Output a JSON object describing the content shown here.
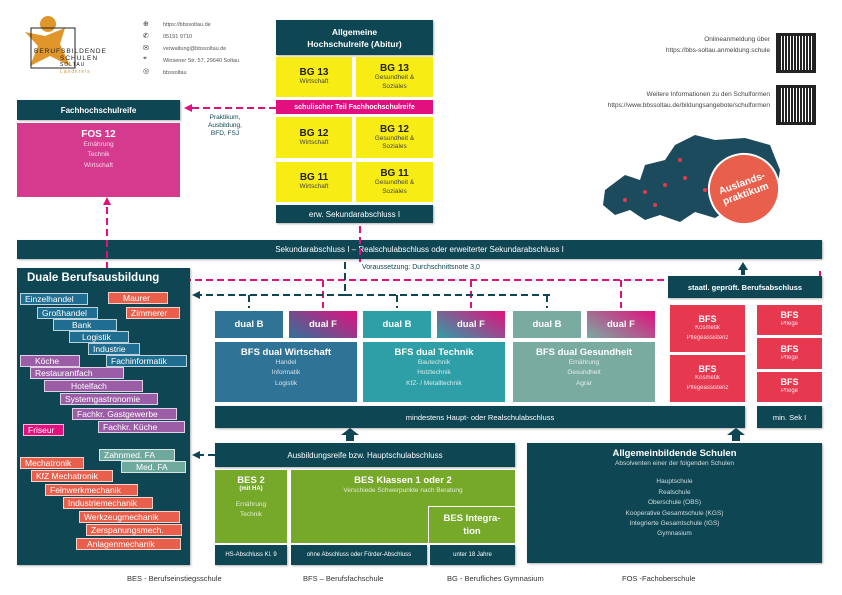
{
  "logo": {
    "line1": "BERUFSBILDENDE",
    "line2": "SCHULEN",
    "line3": "SOLTAU",
    "line4": "Landkreis"
  },
  "contact": [
    {
      "icon": "globe-icon",
      "text": "https://bbssoltau.de"
    },
    {
      "icon": "phone-icon",
      "text": "05191 9710"
    },
    {
      "icon": "mail-icon",
      "text": "verwaltung@bbssoltau.de"
    },
    {
      "icon": "location-icon",
      "text": "Winsener Str. 57, 29640 Soltau"
    },
    {
      "icon": "instagram-icon",
      "text": "bbssoltau"
    }
  ],
  "online": {
    "line1": "Onlineanmeldung über",
    "line2": "https://bbs-soltau.anmeldung.schule"
  },
  "info": {
    "line1": "Weitere Informationen zu den Schulformen",
    "line2": "https://www.bbssoltau.de/bildungsangebote/schulformen"
  },
  "badge": {
    "line1": "Auslands-",
    "line2": "praktikum"
  },
  "abitur": {
    "title1": "Allgemeine",
    "title2": "Hochschulreife (Abitur)",
    "fhr_bar": "schulischer Teil Fachhochschulreife",
    "bottom": "erw. Sekundarabschluss I",
    "rows": [
      {
        "left": {
          "title": "BG 13",
          "sub": "Wirtschaft"
        },
        "right": {
          "title": "BG 13",
          "sub": "Gesundheit & Soziales"
        }
      },
      {
        "left": {
          "title": "BG 12",
          "sub": "Wirtschaft"
        },
        "right": {
          "title": "BG 12",
          "sub": "Gesundheit & Soziales"
        }
      },
      {
        "left": {
          "title": "BG 11",
          "sub": "Wirtschaft"
        },
        "right": {
          "title": "BG 11",
          "sub": "Gesundheit & Soziales"
        }
      }
    ]
  },
  "fhr": {
    "title": "Fachhochschulreife",
    "fos_title": "FOS 12",
    "fos_items": [
      "Ernährung",
      "Technik",
      "Wirtschaft"
    ],
    "praktikum": [
      "Praktikum,",
      "Ausbildung,",
      "BFD, FSJ"
    ]
  },
  "sek_bar": "Sekundarabschluss I – Realschulabschluss oder erweiterter Sekundarabschluss I",
  "voraussetzung": "Voraussetzung: Durchschnittsnote 3,0",
  "duale": {
    "title": "Duale Berufsausbildung",
    "trades": [
      "Einzelhandel",
      "Großhandel",
      "Bank",
      "Logistik",
      "Industrie",
      "Fachinformatik",
      "Maurer",
      "Zimmerer",
      "Köche",
      "Restaurantfach",
      "Hotelfach",
      "Systemgastronomie",
      "Fachkr. Gastgewerbe",
      "Fachkr. Küche",
      "Friseur",
      "Zahnmed. FA",
      "Med. FA",
      "Mechatronik",
      "KfZ Mechatronik",
      "Feinwerkmechanik",
      "Industriemechanik",
      "Werkzeugmechanik",
      "Zerspanungsmech.",
      "Anlagenmechanik"
    ]
  },
  "dual": {
    "b": "dual B",
    "f": "dual F",
    "groups": [
      {
        "title": "BFS dual Wirtschaft",
        "items": [
          "Handel",
          "Informatik",
          "Logistik"
        ]
      },
      {
        "title": "BFS dual Technik",
        "items": [
          "Bautechnik",
          "Holztechnik",
          "KfZ- / Metalltechnik"
        ]
      },
      {
        "title": "BFS dual Gesundheit",
        "items": [
          "Ernährung",
          "Gesundheit",
          "Agrar"
        ]
      }
    ]
  },
  "staatl": "staatl. geprüft. Berufsabschluss",
  "bfs": {
    "title": "BFS",
    "left_items": [
      "Kosmetik",
      "Pflegeassistenz"
    ],
    "right_item": "Pflege"
  },
  "min_bar": "mindestens Haupt- oder Realschulabschluss",
  "min_sek": "min. Sek I",
  "ausbildungsreife": "Ausbildungsreife bzw. Hauptschulabschluss",
  "bes": {
    "bes2_title": "BES 2",
    "bes2_sub": "(mit HA)",
    "bes2_items": [
      "Ernährung",
      "Technik"
    ],
    "klassen_title": "BES Klassen 1 oder 2",
    "klassen_sub": "Verschiede Schwerpunkte nach Beratung",
    "integ1": "BES Integra-",
    "integ2": "tion",
    "foot1": "HS-Abschluss Kl. 9",
    "foot2": "ohne Abschluss oder Förder-Abschluss",
    "foot3": "unter 18 Jahre"
  },
  "allg": {
    "title": "Allgemeinbildende Schulen",
    "sub": "Absolventen einer der folgenden Schulen",
    "items": [
      "Hauptschule",
      "Realschule",
      "Oberschule (OBS)",
      "Kooperative Gesamtschule (KGS)",
      "Integrierte Gesamtschule (IGS)",
      "Gymnasium"
    ]
  },
  "legend": [
    "BES - Berufseinstiegsschule",
    "BFS – Berufsfachschule",
    "BG - Berufliches Gymnasium",
    "FOS -Fachoberschule"
  ],
  "colors": {
    "dark": "#0e4654",
    "yellow": "#f7ec13",
    "magenta": "#e2107f",
    "fos": "#d63a8e",
    "red": "#e63950",
    "green": "#76a82a"
  }
}
